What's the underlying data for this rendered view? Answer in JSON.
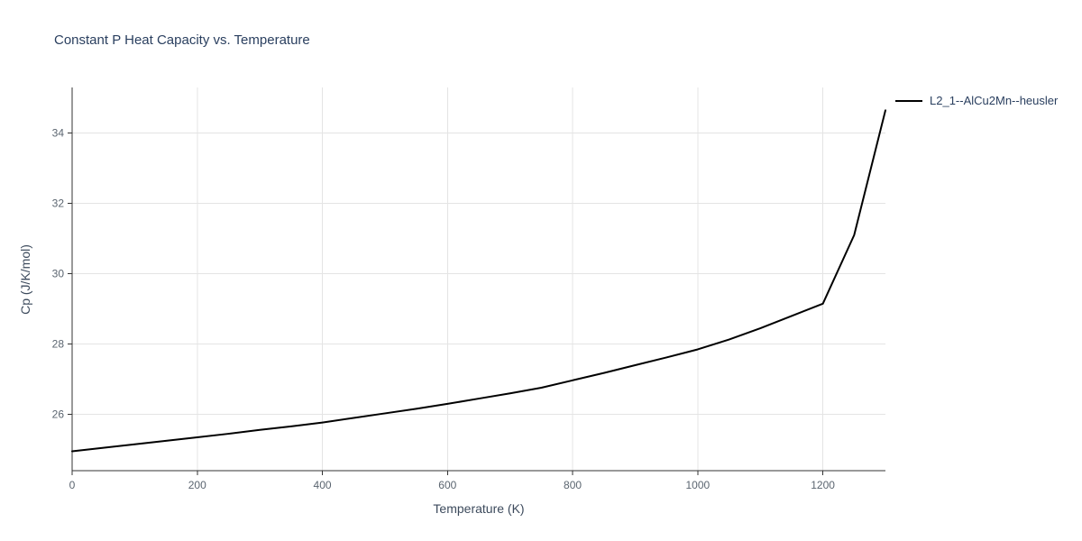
{
  "chart_data": {
    "type": "line",
    "title": "Constant P Heat Capacity vs. Temperature",
    "xlabel": "Temperature (K)",
    "ylabel": "Cp (J/K/mol)",
    "xlim": [
      0,
      1300
    ],
    "ylim": [
      24.4,
      35.3
    ],
    "xticks": [
      0,
      200,
      400,
      600,
      800,
      1000,
      1200
    ],
    "yticks": [
      26,
      28,
      30,
      32,
      34
    ],
    "grid": true,
    "legend_position": "top-right-outside",
    "series": [
      {
        "name": "L2_1--AlCu2Mn--heusler",
        "color": "#000000",
        "x": [
          0,
          50,
          100,
          150,
          200,
          250,
          300,
          350,
          400,
          450,
          500,
          550,
          600,
          650,
          700,
          750,
          800,
          850,
          900,
          950,
          1000,
          1050,
          1100,
          1150,
          1200,
          1250,
          1300
        ],
        "y": [
          24.95,
          25.05,
          25.15,
          25.25,
          25.35,
          25.45,
          25.56,
          25.66,
          25.77,
          25.9,
          26.03,
          26.16,
          26.3,
          26.45,
          26.6,
          26.76,
          26.97,
          27.18,
          27.4,
          27.62,
          27.85,
          28.13,
          28.45,
          28.8,
          29.15,
          31.1,
          34.65
        ]
      }
    ],
    "colors": {
      "title": "#2a3f5f",
      "axis_label": "#3c4a5c",
      "tick_label": "#5b6570",
      "axis_line": "#333333",
      "grid_line": "#e4e4e4",
      "line": "#000000"
    }
  }
}
